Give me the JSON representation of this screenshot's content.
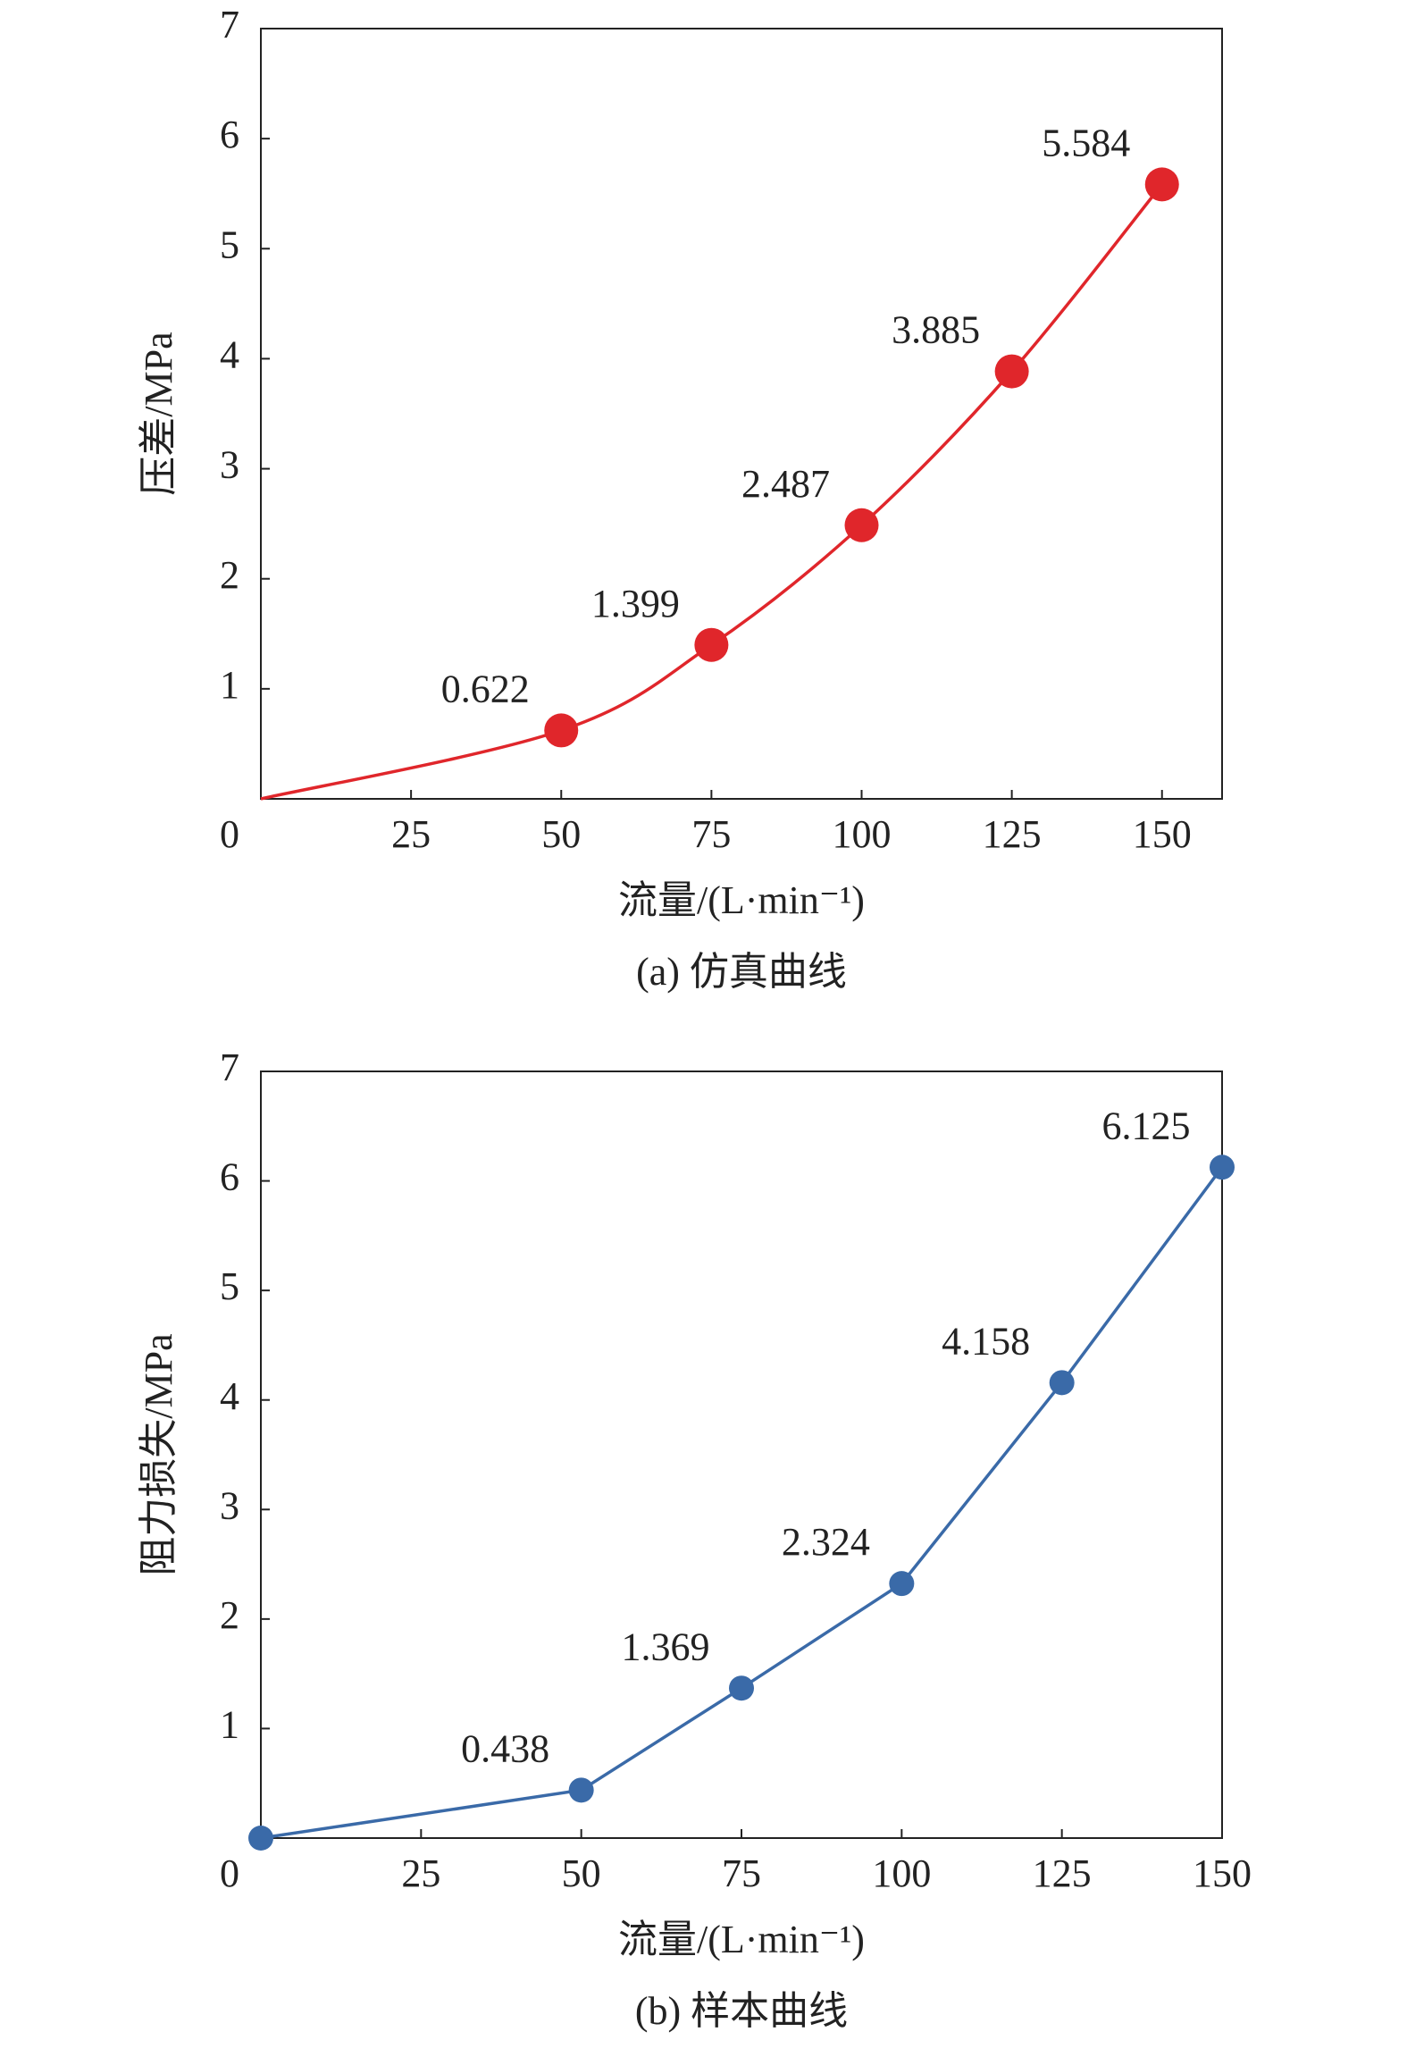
{
  "chart_data": [
    {
      "type": "line",
      "smooth": true,
      "origin_marker": false,
      "x": [
        0,
        50,
        75,
        100,
        125,
        150
      ],
      "values": [
        0,
        0.622,
        1.399,
        2.487,
        3.885,
        5.584
      ],
      "value_labels": [
        null,
        "0.622",
        "1.399",
        "2.487",
        "3.885",
        "5.584"
      ],
      "color": "#e0262b",
      "xlim": [
        0,
        160
      ],
      "ylim": [
        0,
        7
      ],
      "xticks": [
        25,
        50,
        75,
        100,
        125,
        150
      ],
      "yticks": [
        0,
        1,
        2,
        3,
        4,
        5,
        6,
        7
      ],
      "x_label": "流量/(L·min⁻¹)",
      "y_label": "压差/MPa",
      "caption": "(a) 仿真曲线"
    },
    {
      "type": "line",
      "smooth": false,
      "origin_marker": true,
      "x": [
        0,
        50,
        75,
        100,
        125,
        150
      ],
      "values": [
        0,
        0.438,
        1.369,
        2.324,
        4.158,
        6.125
      ],
      "value_labels": [
        null,
        "0.438",
        "1.369",
        "2.324",
        "4.158",
        "6.125"
      ],
      "color": "#3a6aa8",
      "xlim": [
        0,
        150
      ],
      "ylim": [
        0,
        7
      ],
      "xticks": [
        25,
        50,
        75,
        100,
        125,
        150
      ],
      "yticks": [
        0,
        1,
        2,
        3,
        4,
        5,
        6,
        7
      ],
      "x_label": "流量/(L·min⁻¹)",
      "y_label": "阻力损失/MPa",
      "caption": "(b) 样本曲线"
    }
  ]
}
